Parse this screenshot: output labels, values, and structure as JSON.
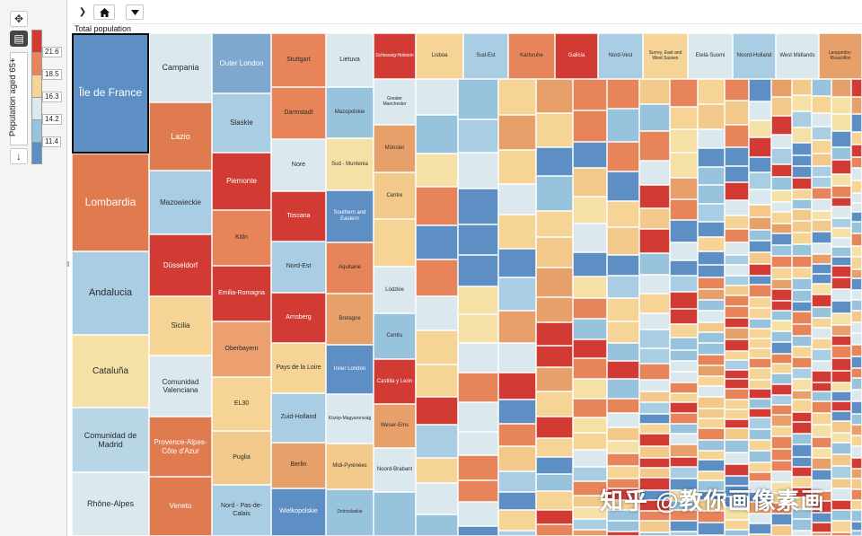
{
  "toolbar": {
    "move_icon": "move-icon",
    "legend_toggle_icon": "legend-icon",
    "scroll_down_label": "↓"
  },
  "breadcrumb": {
    "chevron": "❯",
    "home_icon": "home-icon",
    "dropdown_icon": "chevron-down-icon"
  },
  "legend": {
    "title": "Population aged 65+",
    "ticks": [
      "21.6",
      "18.5",
      "16.3",
      "14.2",
      "11.4"
    ],
    "colors": [
      "#d13b34",
      "#e8845a",
      "#f5d495",
      "#dbe8ee",
      "#98c3dd",
      "#5d8ec4"
    ]
  },
  "chart_data": {
    "type": "treemap",
    "title": "Total population",
    "color_metric": "Population aged 65+",
    "labeled_regions": [
      {
        "label": "Île de France",
        "color": "#5d8ec4"
      },
      {
        "label": "Lombardia",
        "color": "#e07a4f"
      },
      {
        "label": "Andalucia",
        "color": "#a9cde3"
      },
      {
        "label": "Cataluña",
        "color": "#f5e1a6"
      },
      {
        "label": "Comunidad de Madrid",
        "color": "#b8d6e6"
      },
      {
        "label": "Rhône-Alpes",
        "color": "#dbe8ee"
      },
      {
        "label": "Campania",
        "color": "#dbe8ee"
      },
      {
        "label": "Lazio",
        "color": "#e07a4f"
      },
      {
        "label": "Mazowieckie",
        "color": "#a9cde3"
      },
      {
        "label": "Düsseldorf",
        "color": "#d13b34"
      },
      {
        "label": "Sicilia",
        "color": "#f5d495"
      },
      {
        "label": "Comunidad Valenciana",
        "color": "#dbe8ee"
      },
      {
        "label": "Provence-Alpes-Côte d'Azur",
        "color": "#e07a4f"
      },
      {
        "label": "Veneto",
        "color": "#e07a4f"
      },
      {
        "label": "Outer London",
        "color": "#7ea8cf"
      },
      {
        "label": "Slaskie",
        "color": "#a9cde3"
      },
      {
        "label": "Piemonte",
        "color": "#d13b34"
      },
      {
        "label": "Köln",
        "color": "#e8845a"
      },
      {
        "label": "Emilia-Romagna",
        "color": "#d13b34"
      },
      {
        "label": "Oberbayern",
        "color": "#eca070"
      },
      {
        "label": "EL30",
        "color": "#f5d495"
      },
      {
        "label": "Puglia",
        "color": "#f2c98a"
      },
      {
        "label": "Nord - Pas-de-Calais",
        "color": "#a9cde3"
      },
      {
        "label": "Stuttgart",
        "color": "#e8845a"
      },
      {
        "label": "Darmstadt",
        "color": "#e8845a"
      },
      {
        "label": "Nore",
        "color": "#dbe8ee"
      },
      {
        "label": "Toscana",
        "color": "#d13b34"
      },
      {
        "label": "Nord-Est",
        "color": "#a9cde3"
      },
      {
        "label": "Arnsberg",
        "color": "#d13b34"
      },
      {
        "label": "Pays de la Loire",
        "color": "#f5d495"
      },
      {
        "label": "Zuid-Holland",
        "color": "#a9cde3"
      },
      {
        "label": "Berlin",
        "color": "#e8a06a"
      },
      {
        "label": "Wielkopolskie",
        "color": "#5d8ec4"
      },
      {
        "label": "Lietuva",
        "color": "#dbe8ee"
      },
      {
        "label": "Mazopolskie",
        "color": "#98c3dd"
      },
      {
        "label": "Sud - Muntenia",
        "color": "#f5e1a6"
      },
      {
        "label": "Southern and Eastern",
        "color": "#5d8ec4"
      },
      {
        "label": "Aquitaine",
        "color": "#e8845a"
      },
      {
        "label": "Bretagne",
        "color": "#e8a06a"
      },
      {
        "label": "Inner London",
        "color": "#5d8ec4"
      },
      {
        "label": "Közép-Magyarország",
        "color": "#dbe8ee"
      },
      {
        "label": "Midi-Pyrénées",
        "color": "#f2c98a"
      },
      {
        "label": "Dolnoslaskie",
        "color": "#98c3dd"
      },
      {
        "label": "Schleswig-Holstein",
        "color": "#d13b34"
      },
      {
        "label": "Greater Manchester",
        "color": "#dbe8ee"
      },
      {
        "label": "Münster",
        "color": "#e8a06a"
      },
      {
        "label": "Centre",
        "color": "#f2c98a"
      },
      {
        "label": "Lisboa",
        "color": "#f5d495"
      },
      {
        "label": "Sud-Est",
        "color": "#a9cde3"
      },
      {
        "label": "Karlsruhe",
        "color": "#e8845a"
      },
      {
        "label": "Galicia",
        "color": "#d13b34"
      },
      {
        "label": "Nord-Vest",
        "color": "#a9cde3"
      },
      {
        "label": "Surrey, East and West Sussex",
        "color": "#f5d495"
      },
      {
        "label": "Etelä-Suomi",
        "color": "#dbe8ee"
      },
      {
        "label": "Noord-Holland",
        "color": "#a9cde3"
      },
      {
        "label": "West Midlands",
        "color": "#dbe8ee"
      },
      {
        "label": "Languedoc-Roussillon",
        "color": "#e8a06a"
      },
      {
        "label": "Lódzkie",
        "color": "#dbe8ee"
      },
      {
        "label": "Centru",
        "color": "#98c3dd"
      },
      {
        "label": "Castilla y León",
        "color": "#d13b34"
      },
      {
        "label": "Weser-Ems",
        "color": "#e8a06a"
      },
      {
        "label": "Noord-Brabant",
        "color": "#dbe8ee"
      }
    ]
  },
  "watermark": {
    "text": "知乎 @教你画像素画"
  }
}
